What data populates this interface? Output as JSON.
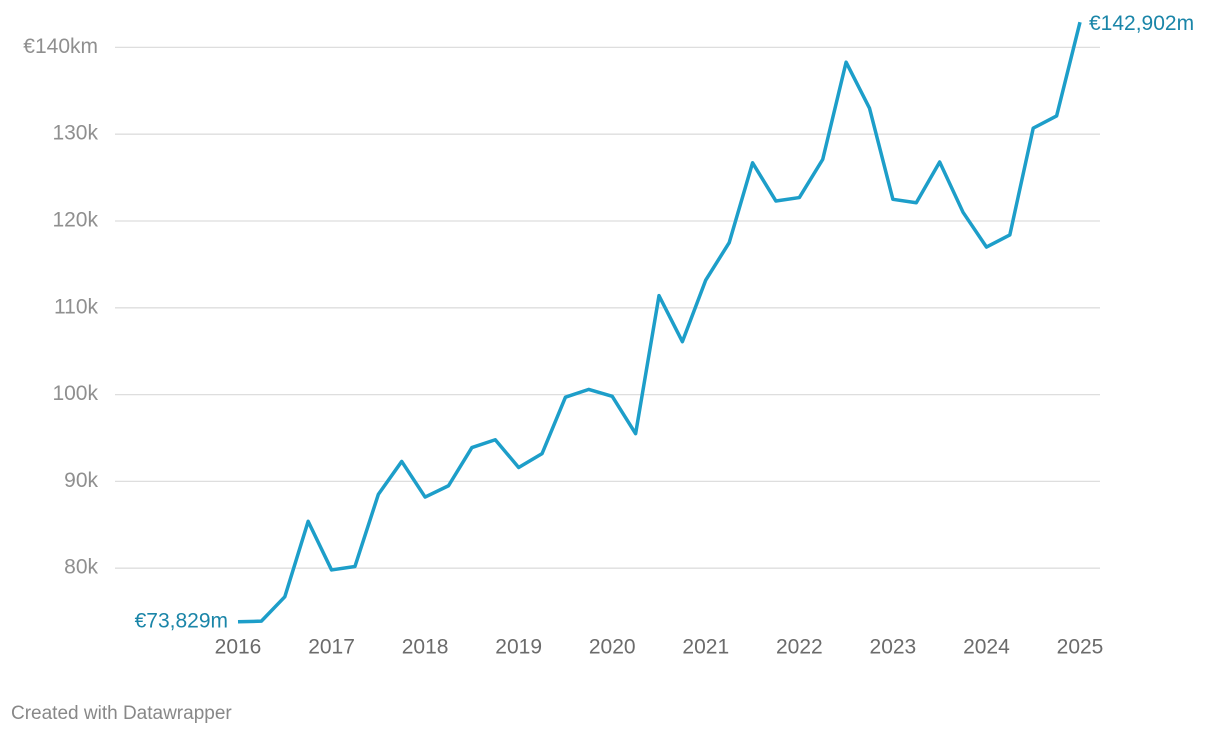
{
  "chart_data": {
    "type": "line",
    "x": [
      2016,
      2016.25,
      2016.5,
      2016.75,
      2017,
      2017.25,
      2017.5,
      2017.75,
      2018,
      2018.25,
      2018.5,
      2018.75,
      2019,
      2019.25,
      2019.5,
      2019.75,
      2020,
      2020.25,
      2020.5,
      2020.75,
      2021,
      2021.25,
      2021.5,
      2021.75,
      2022,
      2022.25,
      2022.5,
      2022.75,
      2023,
      2023.25,
      2023.5,
      2023.75,
      2024,
      2024.25,
      2024.5,
      2024.75,
      2025
    ],
    "series": [
      {
        "color": "#1d9ec9",
        "values": [
          73829,
          73900,
          76700,
          85400,
          79800,
          80200,
          88500,
          92300,
          88200,
          89500,
          93900,
          94800,
          91600,
          93200,
          99700,
          100600,
          99800,
          95500,
          111400,
          106100,
          113200,
          117500,
          126700,
          122300,
          122700,
          127100,
          138300,
          133000,
          122500,
          122100,
          126800,
          121000,
          117000,
          118400,
          130700,
          132100,
          142902
        ],
        "value_labels": [
          "€73,829m",
          null,
          null,
          null,
          null,
          null,
          null,
          null,
          null,
          null,
          null,
          null,
          null,
          null,
          null,
          null,
          null,
          null,
          null,
          null,
          null,
          null,
          null,
          null,
          null,
          null,
          null,
          null,
          null,
          null,
          null,
          null,
          null,
          null,
          null,
          null,
          "€142,902m"
        ]
      }
    ],
    "xlim": [
      2016,
      2025
    ],
    "xticks": [
      2016,
      2017,
      2018,
      2019,
      2020,
      2021,
      2022,
      2023,
      2024,
      2025
    ],
    "ylim": [
      70000,
      145000
    ],
    "yticks": [
      {
        "value": 80000,
        "label": "80k"
      },
      {
        "value": 90000,
        "label": "90k"
      },
      {
        "value": 100000,
        "label": "100k"
      },
      {
        "value": 110000,
        "label": "110k"
      },
      {
        "value": 120000,
        "label": "120k"
      },
      {
        "value": 130000,
        "label": "130k"
      },
      {
        "value": 140000,
        "label": "€140km"
      }
    ],
    "grid": true,
    "footer": "Created with Datawrapper"
  }
}
